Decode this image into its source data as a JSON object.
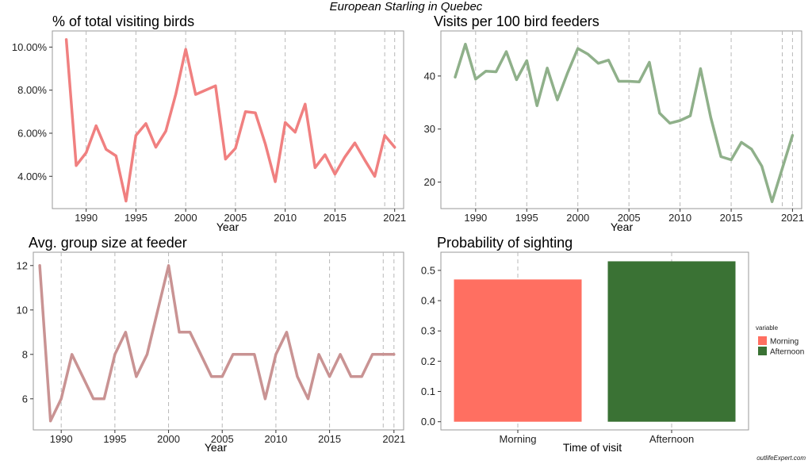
{
  "figure": {
    "title": "European Starling in Quebec",
    "watermark": "outlifeExpert.com"
  },
  "colors": {
    "panel1_line": "#F08080",
    "panel2_line": "#8FB08A",
    "panel3_line": "#C99393",
    "morning": "#FF6F61",
    "afternoon": "#3A7234",
    "grid": "#b8b8b8",
    "frame": "#9a9a9a"
  },
  "chart_data": [
    {
      "type": "line",
      "title": "% of total visiting birds",
      "xlabel": "Year",
      "ylabel": "",
      "x_ticks": [
        1990,
        1995,
        2000,
        2005,
        2010,
        2015,
        2021
      ],
      "y_ticks": [
        "4.00%",
        "6.00%",
        "8.00%",
        "10.00%"
      ],
      "y_tick_values": [
        4,
        6,
        8,
        10
      ],
      "xlim": [
        1986.6,
        2021.9
      ],
      "ylim": [
        2.5,
        10.75
      ],
      "grid": "vertical dashed",
      "series": [
        {
          "x": [
            1988,
            1989,
            1990,
            1991,
            1992,
            1993,
            1994,
            1995,
            1996,
            1997,
            1998,
            1999,
            2000,
            2001,
            2003,
            2004,
            2005,
            2006,
            2007,
            2008,
            2009,
            2010,
            2011,
            2012,
            2013,
            2014,
            2015,
            2016,
            2017,
            2018,
            2019,
            2020,
            2021
          ],
          "values": [
            10.35,
            4.5,
            5.1,
            6.35,
            5.25,
            4.95,
            2.85,
            5.9,
            6.45,
            5.35,
            6.1,
            7.8,
            9.9,
            7.8,
            8.2,
            4.8,
            5.3,
            7.0,
            6.95,
            5.5,
            3.75,
            6.5,
            6.05,
            7.35,
            4.4,
            5.0,
            4.1,
            4.9,
            5.55,
            4.75,
            4.0,
            5.9,
            5.35
          ]
        }
      ]
    },
    {
      "type": "line",
      "title": "Visits per 100 bird feeders",
      "xlabel": "Year",
      "ylabel": "",
      "x_ticks": [
        1990,
        1995,
        2000,
        2005,
        2010,
        2015,
        2021
      ],
      "y_ticks": [
        "20",
        "30",
        "40"
      ],
      "y_tick_values": [
        20,
        30,
        40
      ],
      "xlim": [
        1986.6,
        2021.9
      ],
      "ylim": [
        15,
        48.5
      ],
      "grid": "vertical dashed",
      "series": [
        {
          "x": [
            1988,
            1989,
            1990,
            1991,
            1992,
            1993,
            1994,
            1995,
            1996,
            1997,
            1998,
            1999,
            2000,
            2001,
            2002,
            2003,
            2004,
            2005,
            2006,
            2007,
            2008,
            2009,
            2010,
            2011,
            2012,
            2013,
            2014,
            2015,
            2016,
            2017,
            2018,
            2019,
            2021
          ],
          "values": [
            39.8,
            46.0,
            39.4,
            40.9,
            40.8,
            44.6,
            39.3,
            42.9,
            34.4,
            41.5,
            35.5,
            40.6,
            45.2,
            44.1,
            42.4,
            43.0,
            39.0,
            39.0,
            38.9,
            42.6,
            33.0,
            31.1,
            31.6,
            32.5,
            41.4,
            32.2,
            24.8,
            24.2,
            27.5,
            26.2,
            23.0,
            16.3,
            28.8
          ]
        }
      ]
    },
    {
      "type": "line",
      "title": "Avg. group size at feeder",
      "xlabel": "Year",
      "ylabel": "",
      "x_ticks": [
        1990,
        1995,
        2000,
        2005,
        2010,
        2015,
        2021
      ],
      "y_ticks": [
        "6",
        "8",
        "10",
        "12"
      ],
      "y_tick_values": [
        6,
        8,
        10,
        12
      ],
      "xlim": [
        1987.4,
        2021.9
      ],
      "ylim": [
        4.6,
        12.6
      ],
      "grid": "vertical dashed",
      "series": [
        {
          "x": [
            1988,
            1989,
            1990,
            1991,
            1992,
            1993,
            1994,
            1995,
            1996,
            1997,
            1998,
            1999,
            2000,
            2001,
            2002,
            2003,
            2004,
            2005,
            2006,
            2007,
            2008,
            2009,
            2010,
            2011,
            2012,
            2013,
            2014,
            2015,
            2016,
            2017,
            2018,
            2019,
            2020,
            2021
          ],
          "values": [
            12,
            5,
            6,
            8,
            7,
            6,
            6,
            8,
            9,
            7,
            8,
            10,
            12,
            9,
            9,
            8,
            7,
            7,
            8,
            8,
            8,
            6,
            8,
            9,
            7,
            6,
            8,
            7,
            8,
            7,
            7,
            8,
            8,
            8
          ]
        }
      ]
    },
    {
      "type": "bar",
      "title": "Probability of sighting",
      "xlabel": "Time of visit",
      "ylabel": "",
      "categories": [
        "Morning",
        "Afternoon"
      ],
      "values": [
        0.47,
        0.53
      ],
      "y_ticks": [
        "0.0",
        "0.1",
        "0.2",
        "0.3",
        "0.4",
        "0.5"
      ],
      "y_tick_values": [
        0,
        0.1,
        0.2,
        0.3,
        0.4,
        0.5
      ],
      "ylim": [
        -0.027,
        0.56
      ],
      "legend": {
        "title": "variable",
        "entries": [
          "Morning",
          "Afternoon"
        ],
        "placement": "right"
      }
    }
  ]
}
